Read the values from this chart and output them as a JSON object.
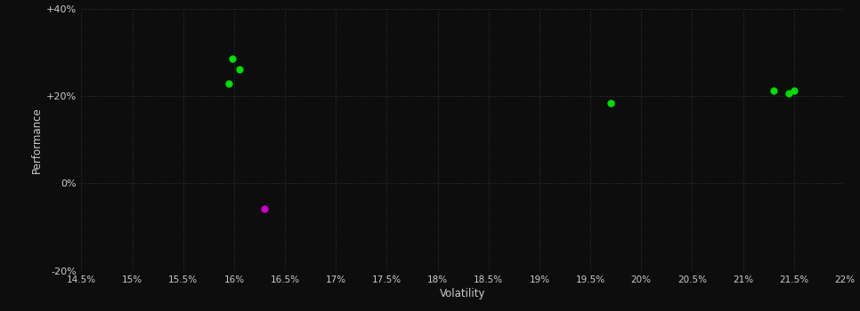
{
  "background_color": "#0d0d0d",
  "grid_color": "#2a2a3a",
  "text_color": "#cccccc",
  "xlabel": "Volatility",
  "ylabel": "Performance",
  "xlim": [
    0.145,
    0.22
  ],
  "ylim": [
    -0.2,
    0.4
  ],
  "xticks": [
    0.145,
    0.15,
    0.155,
    0.16,
    0.165,
    0.17,
    0.175,
    0.18,
    0.185,
    0.19,
    0.195,
    0.2,
    0.205,
    0.21,
    0.215,
    0.22
  ],
  "xtick_labels": [
    "14.5%",
    "15%",
    "15.5%",
    "16%",
    "16.5%",
    "17%",
    "17.5%",
    "18%",
    "18.5%",
    "19%",
    "19.5%",
    "20%",
    "20.5%",
    "21%",
    "21.5%",
    "22%"
  ],
  "yticks": [
    -0.2,
    0.0,
    0.2,
    0.4
  ],
  "ytick_labels": [
    "-20%",
    "0%",
    "+20%",
    "+40%"
  ],
  "green_points": [
    [
      0.1598,
      0.285
    ],
    [
      0.1605,
      0.26
    ],
    [
      0.1595,
      0.228
    ],
    [
      0.197,
      0.183
    ],
    [
      0.213,
      0.213
    ],
    [
      0.215,
      0.212
    ],
    [
      0.2145,
      0.205
    ]
  ],
  "magenta_points": [
    [
      0.163,
      -0.058
    ]
  ],
  "green_color": "#00dd00",
  "magenta_color": "#cc00cc",
  "marker_size": 6
}
